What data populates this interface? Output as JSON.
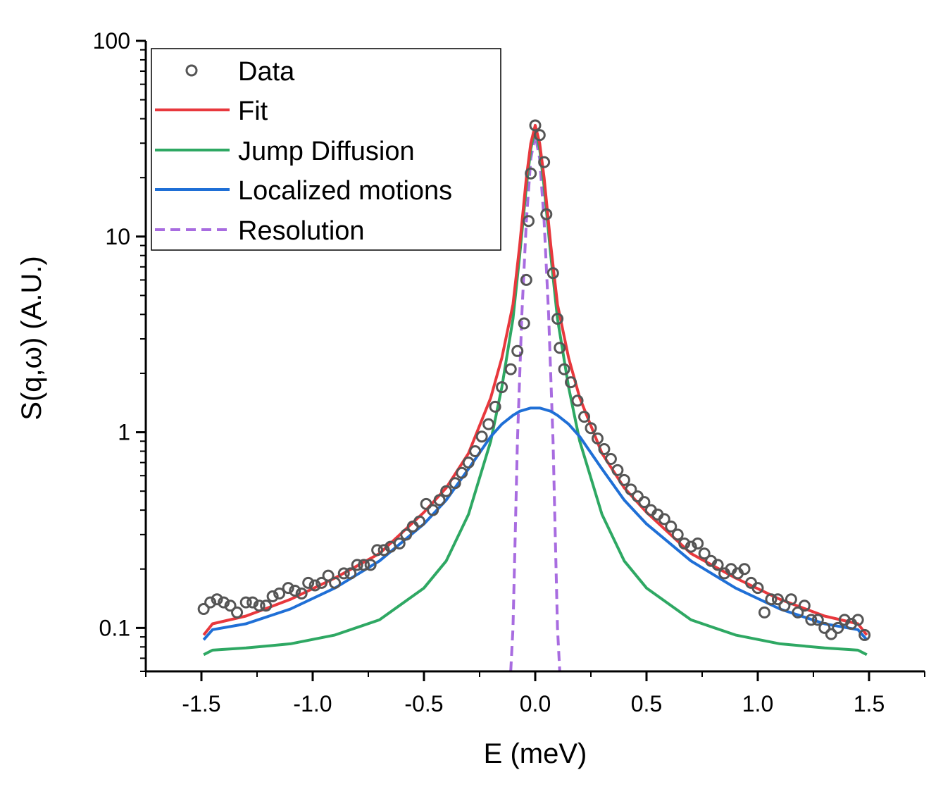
{
  "chart_data": {
    "type": "line",
    "title": "",
    "xlabel": "E (meV)",
    "ylabel": "S(q,ω) (A.U.)",
    "xlim": [
      -1.75,
      1.75
    ],
    "ylim": [
      0.06,
      100
    ],
    "yscale": "log",
    "xticks": [
      -1.5,
      -1.0,
      -0.5,
      0.0,
      0.5,
      1.0,
      1.5
    ],
    "xtick_labels": [
      "-1.5",
      "-1.0",
      "-0.5",
      "0.0",
      "0.5",
      "1.0",
      "1.5"
    ],
    "yticks": [
      0.1,
      1,
      10,
      100
    ],
    "ytick_labels": [
      "0.1",
      "1",
      "10",
      "100"
    ],
    "legend_position": "top-left",
    "legend": [
      "Data",
      "Fit",
      "Jump Diffusion",
      "Localized motions",
      "Resolution"
    ],
    "colors": {
      "data": "#555555",
      "fit": "#e8383d",
      "jump": "#2ea863",
      "localized": "#1f6fd6",
      "resolution": "#a86ce0"
    },
    "data_points": {
      "x": [
        -1.49,
        -1.46,
        -1.43,
        -1.4,
        -1.37,
        -1.34,
        -1.3,
        -1.27,
        -1.24,
        -1.21,
        -1.18,
        -1.15,
        -1.11,
        -1.08,
        -1.05,
        -1.02,
        -0.99,
        -0.96,
        -0.93,
        -0.9,
        -0.86,
        -0.83,
        -0.8,
        -0.77,
        -0.74,
        -0.71,
        -0.68,
        -0.65,
        -0.61,
        -0.58,
        -0.55,
        -0.52,
        -0.49,
        -0.46,
        -0.43,
        -0.4,
        -0.36,
        -0.33,
        -0.3,
        -0.27,
        -0.24,
        -0.21,
        -0.18,
        -0.15,
        -0.11,
        -0.08,
        -0.05,
        -0.04,
        -0.03,
        -0.02,
        0.0,
        0.02,
        0.04,
        0.05,
        0.08,
        0.1,
        0.11,
        0.13,
        0.16,
        0.19,
        0.22,
        0.25,
        0.28,
        0.31,
        0.34,
        0.37,
        0.4,
        0.43,
        0.46,
        0.49,
        0.52,
        0.55,
        0.58,
        0.61,
        0.64,
        0.67,
        0.7,
        0.73,
        0.76,
        0.79,
        0.82,
        0.85,
        0.88,
        0.91,
        0.94,
        0.97,
        1.0,
        1.03,
        1.06,
        1.09,
        1.12,
        1.15,
        1.18,
        1.21,
        1.24,
        1.27,
        1.3,
        1.33,
        1.36,
        1.39,
        1.42,
        1.45,
        1.48
      ],
      "y": [
        0.125,
        0.135,
        0.14,
        0.135,
        0.13,
        0.12,
        0.135,
        0.135,
        0.13,
        0.13,
        0.145,
        0.15,
        0.16,
        0.155,
        0.15,
        0.17,
        0.165,
        0.17,
        0.185,
        0.17,
        0.19,
        0.19,
        0.21,
        0.21,
        0.21,
        0.25,
        0.25,
        0.26,
        0.27,
        0.3,
        0.33,
        0.35,
        0.43,
        0.4,
        0.45,
        0.5,
        0.55,
        0.62,
        0.7,
        0.8,
        0.95,
        1.1,
        1.35,
        1.7,
        2.1,
        2.6,
        3.6,
        6.0,
        12,
        21,
        37,
        33,
        24,
        13,
        6.5,
        3.8,
        2.7,
        2.1,
        1.8,
        1.45,
        1.2,
        1.05,
        0.93,
        0.82,
        0.73,
        0.64,
        0.57,
        0.51,
        0.47,
        0.44,
        0.4,
        0.38,
        0.36,
        0.33,
        0.3,
        0.27,
        0.26,
        0.27,
        0.24,
        0.22,
        0.21,
        0.19,
        0.2,
        0.19,
        0.2,
        0.17,
        0.16,
        0.12,
        0.14,
        0.14,
        0.13,
        0.14,
        0.12,
        0.13,
        0.11,
        0.11,
        0.1,
        0.093,
        0.1,
        0.11,
        0.105,
        0.11,
        0.092
      ]
    },
    "series": [
      {
        "name": "Fit",
        "x": [
          -1.49,
          -1.45,
          -1.3,
          -1.1,
          -0.9,
          -0.7,
          -0.5,
          -0.4,
          -0.3,
          -0.2,
          -0.15,
          -0.1,
          -0.07,
          -0.04,
          -0.02,
          0,
          0.02,
          0.04,
          0.07,
          0.1,
          0.15,
          0.2,
          0.3,
          0.4,
          0.5,
          0.7,
          0.9,
          1.1,
          1.3,
          1.45,
          1.49
        ],
        "values": [
          0.092,
          0.105,
          0.115,
          0.14,
          0.18,
          0.24,
          0.39,
          0.52,
          0.78,
          1.5,
          2.4,
          4.5,
          9,
          20,
          30,
          37,
          30,
          20,
          9,
          4.5,
          2.4,
          1.5,
          0.78,
          0.52,
          0.39,
          0.24,
          0.18,
          0.14,
          0.115,
          0.105,
          0.092
        ]
      },
      {
        "name": "Jump Diffusion",
        "x": [
          -1.49,
          -1.45,
          -1.3,
          -1.1,
          -0.9,
          -0.7,
          -0.5,
          -0.4,
          -0.3,
          -0.2,
          -0.15,
          -0.1,
          -0.07,
          -0.04,
          -0.02,
          0,
          0.02,
          0.04,
          0.07,
          0.1,
          0.15,
          0.2,
          0.3,
          0.4,
          0.5,
          0.7,
          0.9,
          1.1,
          1.3,
          1.45,
          1.49
        ],
        "values": [
          0.073,
          0.077,
          0.079,
          0.083,
          0.092,
          0.11,
          0.16,
          0.22,
          0.38,
          0.9,
          1.7,
          3.8,
          8,
          18,
          28,
          36,
          28,
          18,
          8,
          3.8,
          1.7,
          0.9,
          0.38,
          0.22,
          0.16,
          0.11,
          0.092,
          0.083,
          0.079,
          0.077,
          0.073
        ]
      },
      {
        "name": "Localized motions",
        "x": [
          -1.49,
          -1.45,
          -1.3,
          -1.1,
          -0.9,
          -0.7,
          -0.5,
          -0.4,
          -0.3,
          -0.2,
          -0.15,
          -0.1,
          -0.07,
          -0.04,
          -0.02,
          0,
          0.02,
          0.04,
          0.07,
          0.1,
          0.15,
          0.2,
          0.3,
          0.4,
          0.5,
          0.7,
          0.9,
          1.1,
          1.3,
          1.45,
          1.49
        ],
        "values": [
          0.087,
          0.098,
          0.105,
          0.125,
          0.16,
          0.22,
          0.34,
          0.45,
          0.65,
          0.95,
          1.1,
          1.22,
          1.28,
          1.31,
          1.33,
          1.33,
          1.33,
          1.31,
          1.28,
          1.22,
          1.1,
          0.95,
          0.65,
          0.45,
          0.34,
          0.22,
          0.16,
          0.125,
          0.105,
          0.098,
          0.087
        ]
      },
      {
        "name": "Resolution",
        "x": [
          -0.11,
          -0.1,
          -0.09,
          -0.08,
          -0.06,
          -0.04,
          -0.02,
          0,
          0.02,
          0.04,
          0.06,
          0.08,
          0.09,
          0.1,
          0.11
        ],
        "values": [
          0.06,
          0.1,
          0.3,
          0.9,
          4,
          12,
          25,
          33,
          25,
          12,
          4,
          0.9,
          0.3,
          0.1,
          0.06
        ]
      }
    ]
  }
}
